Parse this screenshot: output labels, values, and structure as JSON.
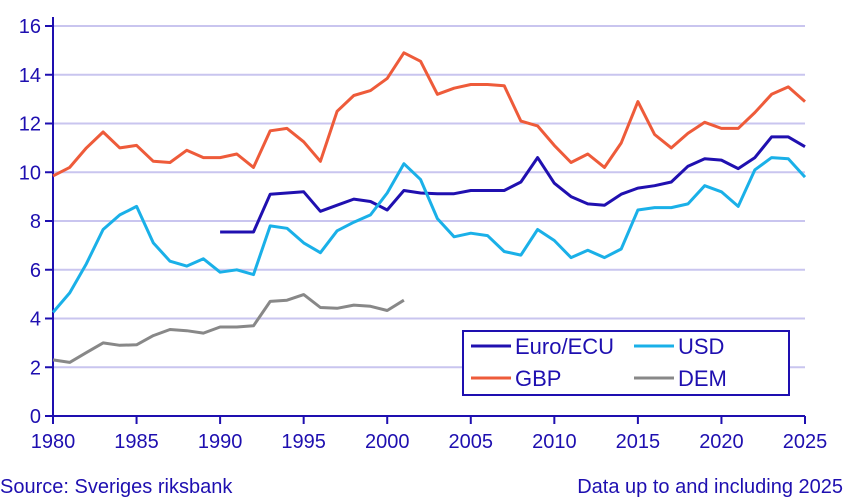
{
  "chart_data": {
    "type": "line",
    "title": "",
    "xlabel": "",
    "ylabel": "",
    "xlim": [
      1980,
      2025
    ],
    "ylim": [
      0,
      16
    ],
    "x_ticks": [
      1980,
      1985,
      1990,
      1995,
      2000,
      2005,
      2010,
      2015,
      2020,
      2025
    ],
    "y_ticks": [
      0,
      2,
      4,
      6,
      8,
      10,
      12,
      14,
      16
    ],
    "grid": "horizontal",
    "legend_position": "bottom-right",
    "series": [
      {
        "name": "Euro/ECU",
        "color": "#2010b0",
        "start": 1990,
        "values": [
          7.55,
          7.55,
          7.55,
          9.1,
          9.15,
          9.2,
          8.4,
          8.65,
          8.9,
          8.8,
          8.45,
          9.25,
          9.15,
          9.12,
          9.12,
          9.25,
          9.25,
          9.25,
          9.6,
          10.6,
          9.55,
          9.0,
          8.7,
          8.65,
          9.1,
          9.35,
          9.45,
          9.6,
          10.25,
          10.55,
          10.5,
          10.15,
          10.6,
          11.45,
          11.45,
          11.05
        ]
      },
      {
        "name": "USD",
        "color": "#1ab0e8",
        "start": 1980,
        "values": [
          4.25,
          5.05,
          6.25,
          7.65,
          8.25,
          8.6,
          7.1,
          6.35,
          6.15,
          6.45,
          5.9,
          6.0,
          5.8,
          7.8,
          7.7,
          7.1,
          6.7,
          7.6,
          7.95,
          8.25,
          9.15,
          10.35,
          9.7,
          8.1,
          7.35,
          7.5,
          7.4,
          6.75,
          6.6,
          7.65,
          7.2,
          6.5,
          6.8,
          6.5,
          6.85,
          8.45,
          8.55,
          8.55,
          8.7,
          9.45,
          9.2,
          8.6,
          10.1,
          10.6,
          10.55,
          9.8
        ]
      },
      {
        "name": "GBP",
        "color": "#ee5b3a",
        "start": 1980,
        "values": [
          9.85,
          10.2,
          11.0,
          11.65,
          11.0,
          11.1,
          10.45,
          10.4,
          10.9,
          10.6,
          10.6,
          10.75,
          10.2,
          11.7,
          11.8,
          11.25,
          10.45,
          12.5,
          13.15,
          13.35,
          13.85,
          14.9,
          14.55,
          13.2,
          13.45,
          13.6,
          13.6,
          13.55,
          12.1,
          11.9,
          11.1,
          10.4,
          10.75,
          10.2,
          11.2,
          12.9,
          11.55,
          11.0,
          11.6,
          12.05,
          11.8,
          11.8,
          12.45,
          13.2,
          13.5,
          12.9
        ]
      },
      {
        "name": "DEM",
        "color": "#888888",
        "start": 1980,
        "values": [
          2.3,
          2.2,
          2.6,
          3.0,
          2.9,
          2.92,
          3.3,
          3.55,
          3.5,
          3.4,
          3.65,
          3.65,
          3.7,
          4.7,
          4.75,
          4.98,
          4.45,
          4.42,
          4.55,
          4.5,
          4.33,
          4.75
        ]
      }
    ]
  },
  "footer": {
    "source": "Source: Sveriges riksbank",
    "note": "Data up to and including 2025"
  },
  "colors": {
    "axis": "#1e0fb0",
    "grid": "#c9c5ef",
    "text": "#1e0fb0"
  }
}
